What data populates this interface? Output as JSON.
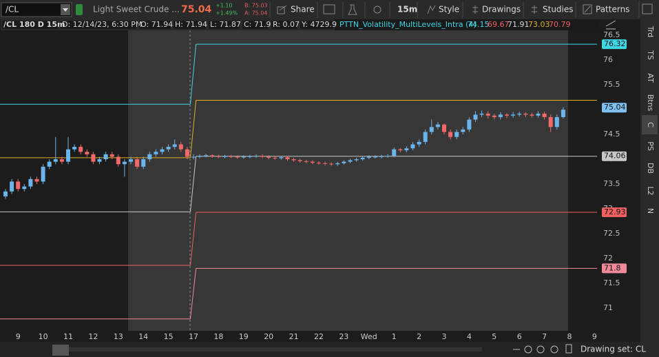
{
  "toolbar": {
    "symbol": "/CL",
    "description": "Light Sweet Crude ...",
    "net_change": "+1.10",
    "percent_change": "+1.49%",
    "bid": "B: 75.03",
    "ask": "A: 75.04",
    "buttons": [
      "Share",
      "15m",
      "Style",
      "Drawings",
      "Studies",
      "Patterns"
    ]
  },
  "info_bar": [
    "/CL 180 D 15m",
    "D: 12/14/23, 6:30 PM",
    "O: 71.94",
    "H: 71.94",
    "L: 71.87",
    "C: 71.9",
    "R: 0.07",
    "Y: 4729.9"
  ],
  "study": {
    "name": "PTTN_Volatility_MultiLevels_Intra (4)",
    "values": [
      "74.15",
      "69.67",
      "71.91",
      "73.03",
      "70.79"
    ]
  },
  "side_tabs": [
    "Trd",
    "TS",
    "AT",
    "Btns",
    "C",
    "PS",
    "DB",
    "L2",
    "N"
  ],
  "footer": {
    "drawing_set": "Drawing set: CL"
  },
  "chart_data": {
    "type": "candlestick",
    "last_price": 75.04,
    "categories": [
      null,
      null,
      "9",
      null,
      null,
      null,
      "10",
      null,
      null,
      null,
      "11",
      null,
      null,
      null,
      "12",
      null,
      null,
      null,
      "13",
      null,
      null,
      null,
      "14",
      null,
      null,
      null,
      "15",
      null,
      null,
      null,
      "17",
      null,
      null,
      null,
      "18",
      null,
      null,
      null,
      "19",
      null,
      null,
      null,
      "20",
      null,
      null,
      null,
      "21",
      null,
      null,
      null,
      "22",
      null,
      null,
      null,
      "23",
      null,
      null,
      null,
      "Wed",
      null,
      null,
      null,
      "1",
      null,
      null,
      null,
      "2",
      null,
      null,
      null,
      "3",
      null,
      null,
      null,
      "4",
      null,
      null,
      null,
      "5",
      null,
      null,
      null,
      "6",
      null,
      null,
      null,
      "7",
      null,
      null,
      null,
      "8",
      null,
      null,
      null,
      "9"
    ],
    "open": [
      73.25,
      73.35,
      73.55,
      73.4,
      73.45,
      73.6,
      73.55,
      73.85,
      73.95,
      74.0,
      73.95,
      74.2,
      74.25,
      74.15,
      74.1,
      73.95,
      74.0,
      74.1,
      74.05,
      73.9,
      73.95,
      74.0,
      73.85,
      74.0,
      74.1,
      74.15,
      74.2,
      74.25,
      74.3,
      74.2,
      74.05,
      74.05,
      74.07,
      74.08,
      74.06,
      74.05,
      74.06,
      74.05,
      74.04,
      74.05,
      74.06,
      74.07,
      74.05,
      74.03,
      74.02,
      74.04,
      74.0,
      73.98,
      73.96,
      73.95,
      73.93,
      73.92,
      73.91,
      73.9,
      73.92,
      73.95,
      73.98,
      74.0,
      74.03,
      74.05,
      74.05,
      74.06,
      74.07,
      74.2,
      74.18,
      74.22,
      74.3,
      74.35,
      74.55,
      74.65,
      74.7,
      74.55,
      74.45,
      74.55,
      74.6,
      74.8,
      74.9,
      74.92,
      74.88,
      74.85,
      74.9,
      74.88,
      74.9,
      74.92,
      74.9,
      74.88,
      74.92,
      74.85,
      74.65,
      74.85,
      null,
      null,
      null,
      null,
      null
    ],
    "high": [
      73.4,
      73.6,
      73.6,
      73.5,
      73.65,
      73.65,
      73.9,
      74.0,
      74.45,
      74.05,
      74.45,
      74.3,
      74.3,
      74.2,
      74.15,
      74.05,
      74.15,
      74.15,
      74.1,
      74.0,
      74.05,
      74.05,
      74.05,
      74.15,
      74.2,
      74.25,
      74.3,
      74.4,
      74.35,
      74.25,
      74.1,
      74.1,
      74.11,
      74.1,
      74.09,
      74.09,
      74.09,
      74.08,
      74.08,
      74.09,
      74.1,
      74.1,
      74.08,
      74.06,
      74.07,
      74.07,
      74.03,
      74.01,
      73.99,
      73.98,
      73.96,
      73.95,
      73.94,
      73.95,
      73.98,
      74.01,
      74.03,
      74.06,
      74.08,
      74.08,
      74.09,
      74.1,
      74.24,
      74.23,
      74.26,
      74.35,
      74.4,
      74.6,
      74.8,
      74.75,
      74.72,
      74.6,
      74.6,
      74.65,
      74.85,
      74.97,
      74.98,
      74.97,
      74.92,
      74.95,
      74.93,
      74.95,
      74.96,
      74.95,
      74.94,
      74.97,
      74.96,
      74.9,
      74.9,
      75.05,
      null,
      null,
      null,
      null,
      null
    ],
    "low": [
      73.2,
      73.3,
      73.35,
      73.35,
      73.4,
      73.5,
      73.5,
      73.8,
      73.9,
      73.9,
      73.9,
      74.15,
      74.1,
      74.05,
      73.9,
      73.9,
      73.95,
      74.0,
      73.85,
      73.65,
      73.9,
      73.8,
      73.8,
      73.95,
      74.05,
      74.1,
      74.15,
      74.2,
      74.15,
      74.0,
      74.0,
      74.02,
      74.04,
      74.03,
      74.02,
      74.02,
      74.02,
      74.01,
      74.01,
      74.02,
      74.03,
      74.02,
      74.0,
      73.99,
      73.99,
      73.97,
      73.95,
      73.93,
      73.92,
      73.9,
      73.89,
      73.88,
      73.87,
      73.87,
      73.89,
      73.92,
      73.95,
      73.97,
      74.0,
      74.02,
      74.02,
      74.03,
      74.04,
      74.14,
      74.14,
      74.18,
      74.25,
      74.3,
      74.5,
      74.6,
      74.5,
      74.4,
      74.4,
      74.5,
      74.55,
      74.75,
      74.85,
      74.82,
      74.8,
      74.8,
      74.83,
      74.84,
      74.86,
      74.85,
      74.84,
      74.84,
      74.8,
      74.55,
      74.6,
      74.82,
      null,
      null,
      null,
      null,
      null
    ],
    "close": [
      73.35,
      73.55,
      73.4,
      73.45,
      73.6,
      73.55,
      73.85,
      73.95,
      74.0,
      73.95,
      74.2,
      74.25,
      74.15,
      74.1,
      73.95,
      74.0,
      74.1,
      74.05,
      73.9,
      73.95,
      74.0,
      73.85,
      74.0,
      74.1,
      74.15,
      74.2,
      74.25,
      74.3,
      74.2,
      74.05,
      74.05,
      74.07,
      74.08,
      74.06,
      74.05,
      74.06,
      74.05,
      74.04,
      74.05,
      74.06,
      74.07,
      74.05,
      74.03,
      74.02,
      74.04,
      74.0,
      73.98,
      73.96,
      73.95,
      73.93,
      73.92,
      73.91,
      73.9,
      73.92,
      73.95,
      73.98,
      74.0,
      74.03,
      74.05,
      74.05,
      74.06,
      74.07,
      74.2,
      74.18,
      74.22,
      74.3,
      74.35,
      74.55,
      74.65,
      74.7,
      74.55,
      74.45,
      74.55,
      74.6,
      74.8,
      74.9,
      74.92,
      74.88,
      74.85,
      74.9,
      74.88,
      74.9,
      74.92,
      74.9,
      74.88,
      74.92,
      74.85,
      74.65,
      74.85,
      75.0,
      null,
      null,
      null,
      null,
      null
    ],
    "up_color": "#6cb4ec",
    "down_color": "#f06a6a",
    "last_color": "#7fc0f0",
    "levels": [
      {
        "color": "#3fd6e6",
        "values": [
          75.11,
          76.32
        ],
        "axis_label": true
      },
      {
        "color": "#e0b020",
        "values": [
          74.03,
          75.19
        ],
        "axis_label": false
      },
      {
        "color": "#c8c8c8",
        "values": [
          72.94,
          74.06
        ],
        "axis_label": true
      },
      {
        "color": "#f06060",
        "values": [
          71.86,
          72.93
        ],
        "axis_label": true
      },
      {
        "color": "#f08a9a",
        "values": [
          70.78,
          71.8
        ],
        "axis_label": true
      }
    ],
    "ylim": [
      70.54,
      76.6
    ],
    "yticks": [
      71,
      71.5,
      72,
      72.5,
      73,
      73.5,
      74,
      74.5,
      75,
      75.5,
      76,
      76.5
    ]
  }
}
